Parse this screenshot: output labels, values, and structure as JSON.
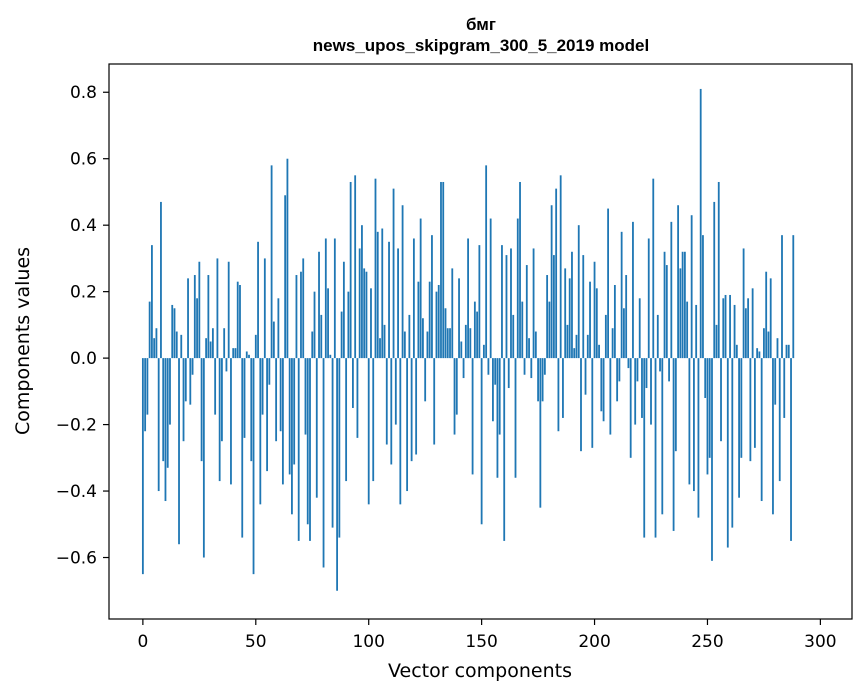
{
  "chart_data": {
    "type": "bar",
    "title": "бмг",
    "subtitle": "news_upos_skipgram_300_5_2019 model",
    "xlabel": "Vector components",
    "ylabel": "Components values",
    "xlim": [
      -15,
      314
    ],
    "ylim": [
      -0.785,
      0.885
    ],
    "xticks": [
      0,
      50,
      100,
      150,
      200,
      250,
      300
    ],
    "yticks": [
      -0.6,
      -0.4,
      -0.2,
      0.0,
      0.2,
      0.4,
      0.6,
      0.8
    ],
    "ytick_labels": [
      "−0.6",
      "−0.4",
      "−0.2",
      "0.0",
      "0.2",
      "0.4",
      "0.6",
      "0.8"
    ],
    "xtick_labels": [
      "0",
      "50",
      "100",
      "150",
      "200",
      "250",
      "300"
    ],
    "bar_color": "#1f77b4",
    "grid": false,
    "values": [
      -0.65,
      -0.22,
      -0.17,
      0.17,
      0.34,
      0.06,
      0.09,
      -0.4,
      0.47,
      -0.31,
      -0.43,
      -0.33,
      -0.2,
      0.16,
      0.15,
      0.08,
      -0.56,
      0.07,
      -0.25,
      -0.13,
      0.24,
      -0.14,
      -0.05,
      0.25,
      0.18,
      0.29,
      -0.31,
      -0.6,
      0.06,
      0.25,
      0.05,
      0.09,
      -0.17,
      0.3,
      -0.37,
      -0.25,
      0.09,
      -0.04,
      0.29,
      -0.38,
      0.03,
      0.03,
      0.23,
      0.22,
      -0.54,
      -0.24,
      0.02,
      0.01,
      -0.31,
      -0.65,
      0.07,
      0.35,
      -0.44,
      -0.17,
      0.3,
      -0.34,
      -0.08,
      0.58,
      0.11,
      -0.25,
      0.18,
      -0.22,
      -0.38,
      0.49,
      0.6,
      -0.35,
      -0.47,
      -0.32,
      0.25,
      -0.55,
      0.26,
      0.3,
      -0.23,
      -0.5,
      -0.55,
      0.08,
      0.2,
      -0.42,
      0.32,
      0.13,
      -0.63,
      0.36,
      0.21,
      0.01,
      -0.51,
      0.36,
      -0.7,
      -0.54,
      0.14,
      0.29,
      -0.37,
      0.2,
      0.53,
      -0.15,
      0.55,
      -0.24,
      0.33,
      0.4,
      0.27,
      0.26,
      -0.44,
      0.21,
      -0.37,
      0.54,
      0.38,
      0.06,
      0.39,
      0.1,
      -0.26,
      0.35,
      -0.32,
      0.51,
      -0.2,
      0.33,
      -0.44,
      0.46,
      0.08,
      -0.4,
      0.13,
      -0.31,
      0.36,
      -0.29,
      0.23,
      0.42,
      0.12,
      -0.13,
      0.08,
      0.23,
      0.37,
      -0.26,
      0.2,
      0.22,
      0.53,
      0.53,
      0.15,
      0.09,
      0.09,
      0.27,
      -0.23,
      -0.17,
      0.24,
      0.05,
      -0.06,
      0.1,
      0.36,
      0.09,
      -0.35,
      0.17,
      0.14,
      0.34,
      -0.5,
      0.04,
      0.58,
      -0.05,
      0.42,
      -0.19,
      -0.08,
      -0.36,
      -0.23,
      0.34,
      -0.55,
      0.31,
      -0.09,
      0.33,
      0.13,
      -0.36,
      0.42,
      0.53,
      0.17,
      -0.05,
      0.28,
      0.06,
      -0.06,
      0.33,
      0.08,
      -0.13,
      -0.45,
      -0.13,
      -0.05,
      0.25,
      0.17,
      0.46,
      0.31,
      0.51,
      -0.22,
      0.55,
      -0.18,
      0.27,
      0.1,
      0.24,
      0.32,
      0.03,
      0.07,
      0.4,
      -0.28,
      0.31,
      -0.11,
      0.07,
      0.23,
      -0.27,
      0.29,
      0.21,
      0.04,
      -0.16,
      -0.19,
      0.13,
      0.45,
      -0.23,
      0.09,
      0.22,
      -0.13,
      -0.07,
      0.38,
      0.15,
      0.25,
      -0.03,
      -0.3,
      0.41,
      -0.2,
      -0.07,
      0.18,
      -0.18,
      -0.54,
      -0.09,
      0.36,
      -0.2,
      0.54,
      -0.54,
      0.13,
      -0.04,
      -0.47,
      0.32,
      0.28,
      -0.07,
      0.41,
      -0.52,
      -0.28,
      0.46,
      0.27,
      0.32,
      0.32,
      0.17,
      -0.38,
      0.43,
      -0.4,
      0.16,
      -0.48,
      0.81,
      0.37,
      -0.12,
      -0.35,
      -0.3,
      -0.61,
      0.47,
      0.1,
      0.53,
      -0.25,
      0.18,
      0.19,
      -0.57,
      0.19,
      -0.51,
      0.16,
      0.04,
      -0.42,
      -0.3,
      0.33,
      0.15,
      0.18,
      -0.31,
      0.21,
      -0.27,
      0.03,
      0.02,
      -0.43,
      0.09,
      0.26,
      0.08,
      0.24,
      -0.47,
      -0.14,
      0.06,
      -0.37,
      0.37,
      -0.18,
      0.04,
      0.04,
      -0.55,
      0.37
    ]
  }
}
